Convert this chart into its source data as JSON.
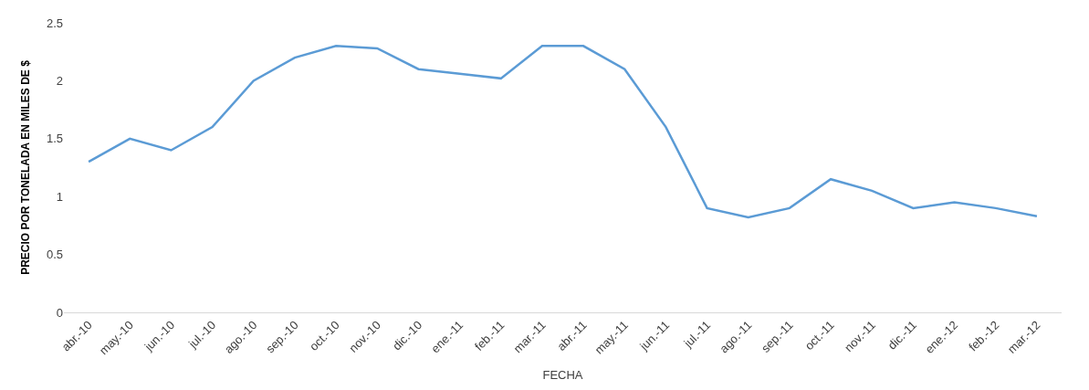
{
  "chart_data": {
    "type": "line",
    "xlabel": "FECHA",
    "ylabel": "PRECIO POR TONELADA EN MILES DE $",
    "categories": [
      "abr.-10",
      "may.-10",
      "jun.-10",
      "jul.-10",
      "ago.-10",
      "sep.-10",
      "oct.-10",
      "nov.-10",
      "dic.-10",
      "ene.-11",
      "feb.-11",
      "mar.-11",
      "abr.-11",
      "may.-11",
      "jun.-11",
      "jul.-11",
      "ago.-11",
      "sep.-11",
      "oct.-11",
      "nov.-11",
      "dic.-11",
      "ene.-12",
      "feb.-12",
      "mar.-12"
    ],
    "series": [
      {
        "color": "#5b9bd5",
        "values": [
          1.3,
          1.5,
          1.4,
          1.6,
          2.0,
          2.2,
          2.3,
          2.28,
          2.1,
          2.06,
          2.02,
          2.3,
          2.3,
          2.1,
          1.6,
          0.9,
          0.82,
          0.9,
          1.15,
          1.05,
          0.9,
          0.95,
          0.9,
          0.83
        ]
      }
    ],
    "ylim": [
      0,
      2.5
    ],
    "yticks": [
      0,
      0.5,
      1,
      1.5,
      2,
      2.5
    ],
    "grid": false,
    "marker": "none",
    "line_style": "solid"
  }
}
